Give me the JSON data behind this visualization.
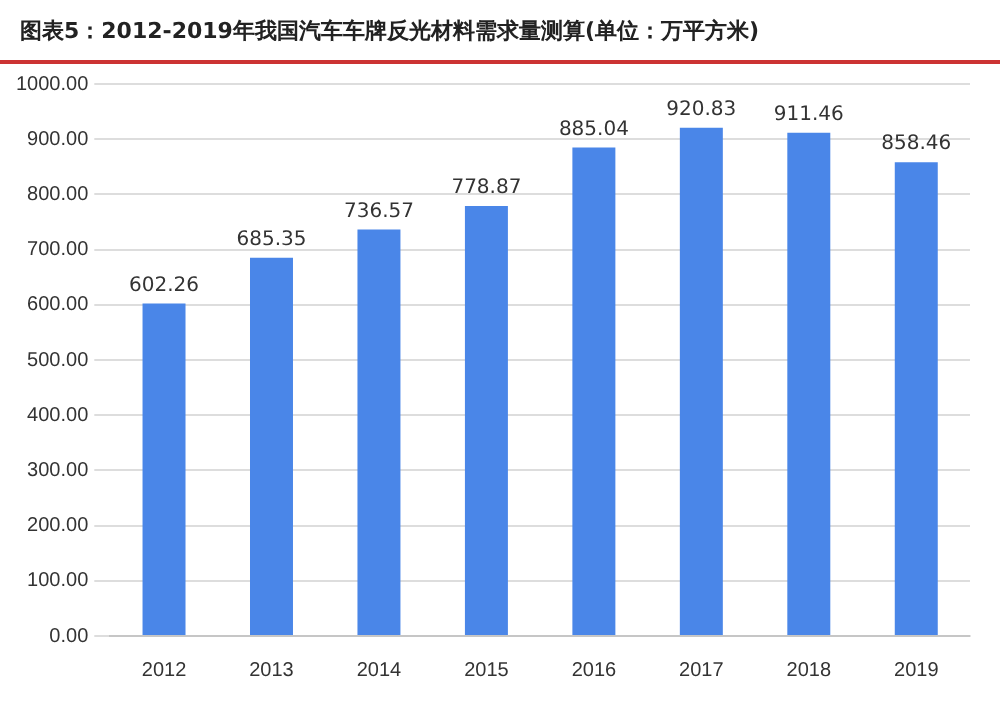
{
  "chart_data": {
    "type": "bar",
    "title": "图表5：2012-2019年我国汽车车牌反光材料需求量测算(单位：万平方米)",
    "categories": [
      "2012",
      "2013",
      "2014",
      "2015",
      "2016",
      "2017",
      "2018",
      "2019"
    ],
    "values": [
      602.26,
      685.35,
      736.57,
      778.87,
      885.04,
      920.83,
      911.46,
      858.46
    ],
    "color": "#4a86e8",
    "data_labels": true,
    "grid": "y",
    "legend": false,
    "ylim": [
      0,
      1000
    ],
    "yticks": [
      {
        "value": 0,
        "label": "0.00"
      },
      {
        "value": 100,
        "label": "100.00"
      },
      {
        "value": 200,
        "label": "200.00"
      },
      {
        "value": 300,
        "label": "300.00"
      },
      {
        "value": 400,
        "label": "400.00"
      },
      {
        "value": 500,
        "label": "500.00"
      },
      {
        "value": 600,
        "label": "600.00"
      },
      {
        "value": 700,
        "label": "700.00"
      },
      {
        "value": 800,
        "label": "800.00"
      },
      {
        "value": 900,
        "label": "900.00"
      },
      {
        "value": 1000,
        "label": "1000.00"
      }
    ]
  }
}
